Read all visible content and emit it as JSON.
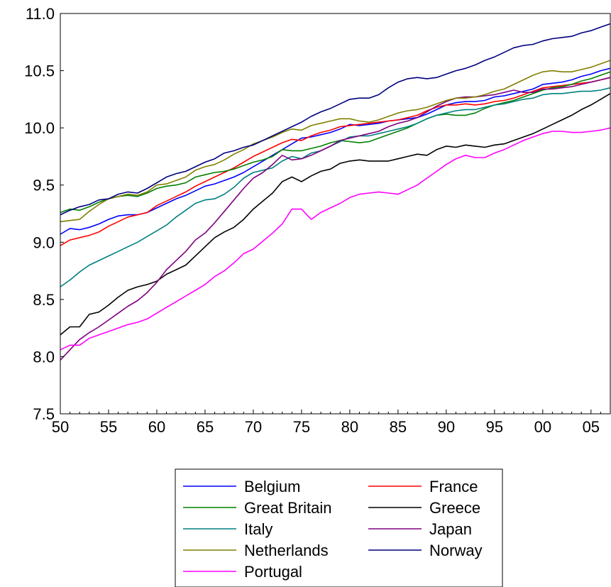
{
  "chart_data": {
    "type": "line",
    "title": "",
    "xlabel": "",
    "ylabel": "",
    "x": [
      1950,
      1951,
      1952,
      1953,
      1954,
      1955,
      1956,
      1957,
      1958,
      1959,
      1960,
      1961,
      1962,
      1963,
      1964,
      1965,
      1966,
      1967,
      1968,
      1969,
      1970,
      1971,
      1972,
      1973,
      1974,
      1975,
      1976,
      1977,
      1978,
      1979,
      1980,
      1981,
      1982,
      1983,
      1984,
      1985,
      1986,
      1987,
      1988,
      1989,
      1990,
      1991,
      1992,
      1993,
      1994,
      1995,
      1996,
      1997,
      1998,
      1999,
      2000,
      2001,
      2002,
      2003,
      2004,
      2005,
      2006,
      2007
    ],
    "xlim": [
      1950,
      2007
    ],
    "ylim": [
      7.5,
      11.0
    ],
    "xticks": [
      {
        "value": 1950,
        "label": "50"
      },
      {
        "value": 1955,
        "label": "55"
      },
      {
        "value": 1960,
        "label": "60"
      },
      {
        "value": 1965,
        "label": "65"
      },
      {
        "value": 1970,
        "label": "70"
      },
      {
        "value": 1975,
        "label": "75"
      },
      {
        "value": 1980,
        "label": "80"
      },
      {
        "value": 1985,
        "label": "85"
      },
      {
        "value": 1990,
        "label": "90"
      },
      {
        "value": 1995,
        "label": "95"
      },
      {
        "value": 2000,
        "label": "00"
      },
      {
        "value": 2005,
        "label": "05"
      }
    ],
    "yticks": [
      {
        "value": 7.5,
        "label": "7.5"
      },
      {
        "value": 8.0,
        "label": "8.0"
      },
      {
        "value": 8.5,
        "label": "8.5"
      },
      {
        "value": 9.0,
        "label": "9.0"
      },
      {
        "value": 9.5,
        "label": "9.5"
      },
      {
        "value": 10.0,
        "label": "10.0"
      },
      {
        "value": 10.5,
        "label": "10.5"
      },
      {
        "value": 11.0,
        "label": "11.0"
      }
    ],
    "grid": false,
    "legend_position": "bottom",
    "series": [
      {
        "name": "Belgium",
        "color": "#0000ff",
        "values": [
          9.07,
          9.12,
          9.11,
          9.13,
          9.16,
          9.2,
          9.23,
          9.24,
          9.24,
          9.26,
          9.3,
          9.34,
          9.38,
          9.41,
          9.45,
          9.49,
          9.51,
          9.54,
          9.57,
          9.61,
          9.66,
          9.71,
          9.76,
          9.81,
          9.86,
          9.91,
          9.92,
          9.94,
          9.96,
          9.99,
          10.03,
          10.02,
          10.03,
          10.04,
          10.06,
          10.07,
          10.08,
          10.09,
          10.12,
          10.16,
          10.2,
          10.22,
          10.23,
          10.23,
          10.24,
          10.27,
          10.28,
          10.3,
          10.32,
          10.34,
          10.38,
          10.39,
          10.4,
          10.42,
          10.45,
          10.47,
          10.5,
          10.52
        ]
      },
      {
        "name": "France",
        "color": "#ff0000",
        "values": [
          8.97,
          9.02,
          9.04,
          9.06,
          9.09,
          9.14,
          9.18,
          9.22,
          9.24,
          9.26,
          9.32,
          9.36,
          9.4,
          9.44,
          9.49,
          9.53,
          9.57,
          9.61,
          9.65,
          9.7,
          9.75,
          9.79,
          9.83,
          9.87,
          9.9,
          9.89,
          9.93,
          9.96,
          9.98,
          10.01,
          10.02,
          10.03,
          10.04,
          10.05,
          10.06,
          10.07,
          10.09,
          10.11,
          10.15,
          10.18,
          10.2,
          10.2,
          10.21,
          10.2,
          10.21,
          10.23,
          10.24,
          10.26,
          10.29,
          10.32,
          10.35,
          10.36,
          10.37,
          10.38,
          10.39,
          10.4,
          10.42,
          10.44
        ]
      },
      {
        "name": "Great Britain",
        "color": "#008000",
        "values": [
          9.26,
          9.29,
          9.28,
          9.31,
          9.35,
          9.38,
          9.4,
          9.41,
          9.4,
          9.43,
          9.47,
          9.49,
          9.5,
          9.52,
          9.57,
          9.59,
          9.61,
          9.62,
          9.64,
          9.67,
          9.7,
          9.72,
          9.75,
          9.81,
          9.8,
          9.8,
          9.82,
          9.84,
          9.87,
          9.89,
          9.88,
          9.87,
          9.88,
          9.91,
          9.94,
          9.97,
          10.0,
          10.04,
          10.08,
          10.11,
          10.12,
          10.11,
          10.11,
          10.13,
          10.17,
          10.2,
          10.22,
          10.24,
          10.27,
          10.3,
          10.33,
          10.35,
          10.36,
          10.38,
          10.41,
          10.43,
          10.46,
          10.49
        ]
      },
      {
        "name": "Greece",
        "color": "#000000",
        "values": [
          8.19,
          8.26,
          8.26,
          8.37,
          8.39,
          8.45,
          8.52,
          8.58,
          8.61,
          8.63,
          8.66,
          8.72,
          8.76,
          8.8,
          8.88,
          8.96,
          9.04,
          9.09,
          9.13,
          9.2,
          9.29,
          9.36,
          9.43,
          9.53,
          9.57,
          9.53,
          9.58,
          9.62,
          9.64,
          9.69,
          9.71,
          9.72,
          9.71,
          9.71,
          9.71,
          9.73,
          9.75,
          9.77,
          9.76,
          9.81,
          9.84,
          9.83,
          9.85,
          9.84,
          9.83,
          9.85,
          9.86,
          9.89,
          9.92,
          9.95,
          9.99,
          10.03,
          10.07,
          10.11,
          10.16,
          10.2,
          10.25,
          10.3
        ]
      },
      {
        "name": "Italy",
        "color": "#008080",
        "values": [
          8.61,
          8.67,
          8.74,
          8.8,
          8.84,
          8.88,
          8.92,
          8.96,
          9.0,
          9.05,
          9.1,
          9.15,
          9.22,
          9.28,
          9.34,
          9.37,
          9.38,
          9.42,
          9.48,
          9.56,
          9.61,
          9.63,
          9.65,
          9.71,
          9.75,
          9.73,
          9.78,
          9.8,
          9.84,
          9.88,
          9.92,
          9.93,
          9.93,
          9.95,
          9.97,
          9.99,
          10.01,
          10.04,
          10.08,
          10.11,
          10.13,
          10.15,
          10.16,
          10.16,
          10.18,
          10.2,
          10.21,
          10.23,
          10.25,
          10.26,
          10.29,
          10.3,
          10.3,
          10.31,
          10.32,
          10.32,
          10.33,
          10.35
        ]
      },
      {
        "name": "Japan",
        "color": "#800080",
        "values": [
          7.97,
          8.06,
          8.15,
          8.21,
          8.26,
          8.32,
          8.38,
          8.44,
          8.49,
          8.56,
          8.65,
          8.76,
          8.84,
          8.92,
          9.02,
          9.08,
          9.17,
          9.27,
          9.37,
          9.47,
          9.56,
          9.61,
          9.68,
          9.76,
          9.72,
          9.73,
          9.76,
          9.8,
          9.84,
          9.89,
          9.91,
          9.93,
          9.95,
          9.97,
          10.01,
          10.04,
          10.06,
          10.09,
          10.14,
          10.19,
          10.23,
          10.26,
          10.27,
          10.27,
          10.28,
          10.29,
          10.31,
          10.33,
          10.31,
          10.31,
          10.34,
          10.34,
          10.35,
          10.36,
          10.38,
          10.4,
          10.42,
          10.44
        ]
      },
      {
        "name": "Netherlands",
        "color": "#808000",
        "values": [
          9.18,
          9.19,
          9.2,
          9.27,
          9.33,
          9.38,
          9.4,
          9.42,
          9.41,
          9.44,
          9.5,
          9.51,
          9.54,
          9.57,
          9.63,
          9.66,
          9.68,
          9.72,
          9.77,
          9.81,
          9.86,
          9.89,
          9.92,
          9.96,
          9.99,
          9.98,
          10.02,
          10.04,
          10.06,
          10.08,
          10.08,
          10.06,
          10.05,
          10.07,
          10.1,
          10.13,
          10.15,
          10.16,
          10.18,
          10.21,
          10.24,
          10.26,
          10.26,
          10.27,
          10.29,
          10.32,
          10.34,
          10.38,
          10.42,
          10.46,
          10.49,
          10.5,
          10.49,
          10.49,
          10.51,
          10.53,
          10.56,
          10.59
        ]
      },
      {
        "name": "Norway",
        "color": "#000080",
        "values": [
          9.24,
          9.28,
          9.31,
          9.33,
          9.37,
          9.38,
          9.42,
          9.44,
          9.43,
          9.47,
          9.52,
          9.57,
          9.6,
          9.62,
          9.66,
          9.7,
          9.73,
          9.78,
          9.8,
          9.83,
          9.85,
          9.89,
          9.93,
          9.97,
          10.01,
          10.05,
          10.1,
          10.14,
          10.17,
          10.21,
          10.25,
          10.26,
          10.26,
          10.29,
          10.35,
          10.4,
          10.43,
          10.44,
          10.43,
          10.44,
          10.47,
          10.5,
          10.52,
          10.55,
          10.59,
          10.62,
          10.66,
          10.7,
          10.72,
          10.73,
          10.76,
          10.78,
          10.79,
          10.8,
          10.83,
          10.85,
          10.88,
          10.91
        ]
      },
      {
        "name": "Portugal",
        "color": "#ff00ff",
        "values": [
          8.06,
          8.1,
          8.1,
          8.16,
          8.19,
          8.22,
          8.25,
          8.28,
          8.3,
          8.33,
          8.38,
          8.43,
          8.48,
          8.53,
          8.58,
          8.63,
          8.7,
          8.75,
          8.82,
          8.9,
          8.94,
          9.01,
          9.08,
          9.16,
          9.29,
          9.29,
          9.2,
          9.26,
          9.3,
          9.34,
          9.39,
          9.42,
          9.43,
          9.44,
          9.43,
          9.42,
          9.46,
          9.5,
          9.56,
          9.62,
          9.68,
          9.73,
          9.76,
          9.74,
          9.74,
          9.78,
          9.81,
          9.85,
          9.89,
          9.92,
          9.95,
          9.97,
          9.97,
          9.96,
          9.96,
          9.97,
          9.98,
          10.0
        ]
      }
    ]
  }
}
